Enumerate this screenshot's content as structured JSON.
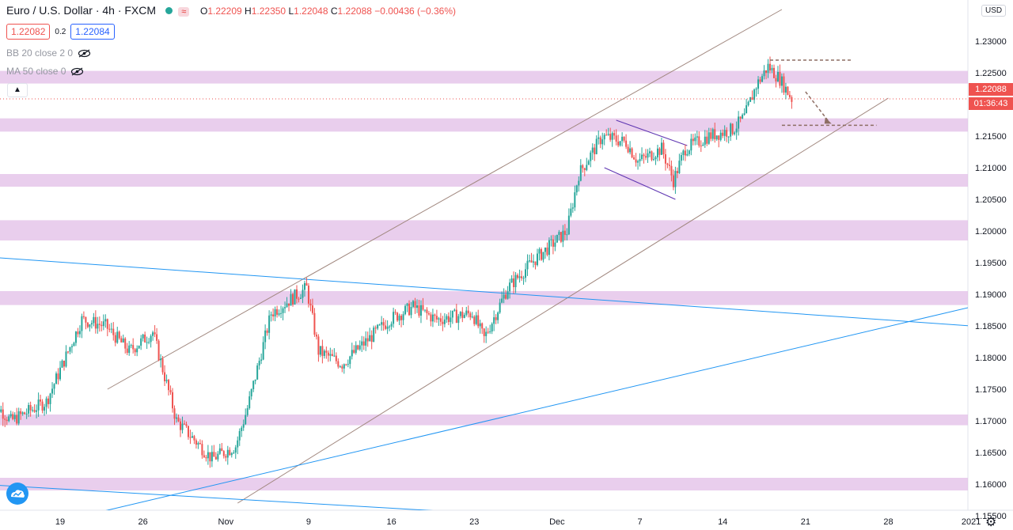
{
  "header": {
    "title": "Euro / U.S. Dollar · 4h · FXCM",
    "open_label": "O",
    "open": "1.22209",
    "high_label": "H",
    "high": "1.22350",
    "low_label": "L",
    "low": "1.22048",
    "close_label": "C",
    "close": "1.22088",
    "change": "−0.00436 (−0.36%)",
    "wave_icon": "≈"
  },
  "quotes": {
    "sell": "1.22082",
    "spread": "0.2",
    "buy": "1.22084"
  },
  "indicators": [
    {
      "label": "BB 20 close 2 0",
      "icon": "eye-crossed-icon"
    },
    {
      "label": "MA 50 close 0",
      "icon": "eye-crossed-icon"
    }
  ],
  "price_axis": {
    "currency": "USD",
    "current_price": "1.22088",
    "countdown": "01:36:43"
  },
  "colors": {
    "up": "#26a69a",
    "down": "#ef5350",
    "zone": "#e1bee7",
    "blue_line": "#2196f3",
    "channel": "#a1887f",
    "flag": "#5e35b1"
  },
  "chart_data": {
    "type": "candlestick",
    "symbol": "EURUSD",
    "timeframe": "4h",
    "ylim": [
      1.1535,
      1.2365
    ],
    "y_ticks": [
      "1.15500",
      "1.16000",
      "1.16500",
      "1.17000",
      "1.17500",
      "1.18000",
      "1.18500",
      "1.19000",
      "1.19500",
      "1.20000",
      "1.20500",
      "1.21000",
      "1.21500",
      "1.22000",
      "1.22500",
      "1.23000"
    ],
    "x_ticks": [
      "19",
      "26",
      "Nov",
      "9",
      "16",
      "23",
      "Dec",
      "7",
      "14",
      "21",
      "28",
      "2021"
    ],
    "x_tick_dates": [
      "2020-10-19",
      "2020-10-26",
      "2020-11-02",
      "2020-11-09",
      "2020-11-16",
      "2020-11-23",
      "2020-11-30",
      "2020-12-07",
      "2020-12-14",
      "2020-12-21",
      "2020-12-28",
      "2021-01-04"
    ],
    "key_closes": [
      {
        "date": "2020-10-13",
        "price": 1.174
      },
      {
        "date": "2020-10-15",
        "price": 1.17
      },
      {
        "date": "2020-10-18",
        "price": 1.173
      },
      {
        "date": "2020-10-21",
        "price": 1.186
      },
      {
        "date": "2020-10-23",
        "price": 1.185
      },
      {
        "date": "2020-10-25",
        "price": 1.181
      },
      {
        "date": "2020-10-27",
        "price": 1.184
      },
      {
        "date": "2020-10-29",
        "price": 1.17
      },
      {
        "date": "2020-11-01",
        "price": 1.164
      },
      {
        "date": "2020-11-03",
        "price": 1.166
      },
      {
        "date": "2020-11-04",
        "price": 1.172
      },
      {
        "date": "2020-11-06",
        "price": 1.187
      },
      {
        "date": "2020-11-09",
        "price": 1.191
      },
      {
        "date": "2020-11-10",
        "price": 1.181
      },
      {
        "date": "2020-11-12",
        "price": 1.179
      },
      {
        "date": "2020-11-16",
        "price": 1.186
      },
      {
        "date": "2020-11-18",
        "price": 1.188
      },
      {
        "date": "2020-11-20",
        "price": 1.186
      },
      {
        "date": "2020-11-23",
        "price": 1.187
      },
      {
        "date": "2020-11-24",
        "price": 1.183
      },
      {
        "date": "2020-11-26",
        "price": 1.191
      },
      {
        "date": "2020-11-28",
        "price": 1.195
      },
      {
        "date": "2020-12-01",
        "price": 1.2
      },
      {
        "date": "2020-12-02",
        "price": 1.209
      },
      {
        "date": "2020-12-04",
        "price": 1.215
      },
      {
        "date": "2020-12-06",
        "price": 1.214
      },
      {
        "date": "2020-12-07",
        "price": 1.211
      },
      {
        "date": "2020-12-09",
        "price": 1.213
      },
      {
        "date": "2020-12-10",
        "price": 1.208
      },
      {
        "date": "2020-12-11",
        "price": 1.213
      },
      {
        "date": "2020-12-13",
        "price": 1.215
      },
      {
        "date": "2020-12-15",
        "price": 1.216
      },
      {
        "date": "2020-12-16",
        "price": 1.218
      },
      {
        "date": "2020-12-17",
        "price": 1.223
      },
      {
        "date": "2020-12-18",
        "price": 1.226
      },
      {
        "date": "2020-12-19",
        "price": 1.224
      },
      {
        "date": "2020-12-20",
        "price": 1.2209
      }
    ],
    "zones": [
      [
        1.2233,
        1.2253
      ],
      [
        1.2157,
        1.2178
      ],
      [
        1.207,
        1.209
      ],
      [
        1.1985,
        1.2017
      ],
      [
        1.1883,
        1.1905
      ],
      [
        1.1693,
        1.171
      ],
      [
        1.159,
        1.161
      ]
    ],
    "lines": [
      {
        "name": "channel-upper",
        "kind": "channel",
        "from": {
          "date": "2020-10-23",
          "price": 1.175
        },
        "to": {
          "date": "2020-12-19",
          "price": 1.235
        }
      },
      {
        "name": "channel-lower",
        "kind": "channel",
        "from": {
          "date": "2020-11-03",
          "price": 1.157
        },
        "to": {
          "date": "2020-12-28",
          "price": 1.221
        }
      },
      {
        "name": "blue-descending-upper",
        "kind": "blue",
        "from": {
          "date": "2020-10-12",
          "price": 1.196
        },
        "to": {
          "date": "2021-01-04",
          "price": 1.185
        }
      },
      {
        "name": "blue-ascending",
        "kind": "blue",
        "from": {
          "date": "2020-10-21",
          "price": 1.155
        },
        "to": {
          "date": "2021-01-04",
          "price": 1.188
        }
      },
      {
        "name": "blue-descending-lower",
        "kind": "blue",
        "from": {
          "date": "2020-10-12",
          "price": 1.16
        },
        "to": {
          "date": "2020-11-27",
          "price": 1.155
        }
      },
      {
        "name": "flag-upper",
        "kind": "flag",
        "from": {
          "date": "2020-12-05",
          "price": 1.2175
        },
        "to": {
          "date": "2020-12-11",
          "price": 1.2135
        }
      },
      {
        "name": "flag-lower",
        "kind": "flag",
        "from": {
          "date": "2020-12-04",
          "price": 1.21
        },
        "to": {
          "date": "2020-12-10",
          "price": 1.205
        }
      }
    ],
    "annotations": [
      {
        "name": "top-dashed-line",
        "kind": "dashed",
        "from": {
          "date": "2020-12-18",
          "price": 1.227
        },
        "to": {
          "date": "2020-12-25",
          "price": 1.227
        }
      },
      {
        "name": "target-dashed-line",
        "kind": "dashed",
        "from": {
          "date": "2020-12-19",
          "price": 1.2167
        },
        "to": {
          "date": "2020-12-27",
          "price": 1.2167
        }
      },
      {
        "name": "down-arrow",
        "kind": "arrow",
        "from": {
          "date": "2020-12-21",
          "price": 1.222
        },
        "to": {
          "date": "2020-12-23",
          "price": 1.2172
        }
      }
    ],
    "last_price": 1.22088
  }
}
